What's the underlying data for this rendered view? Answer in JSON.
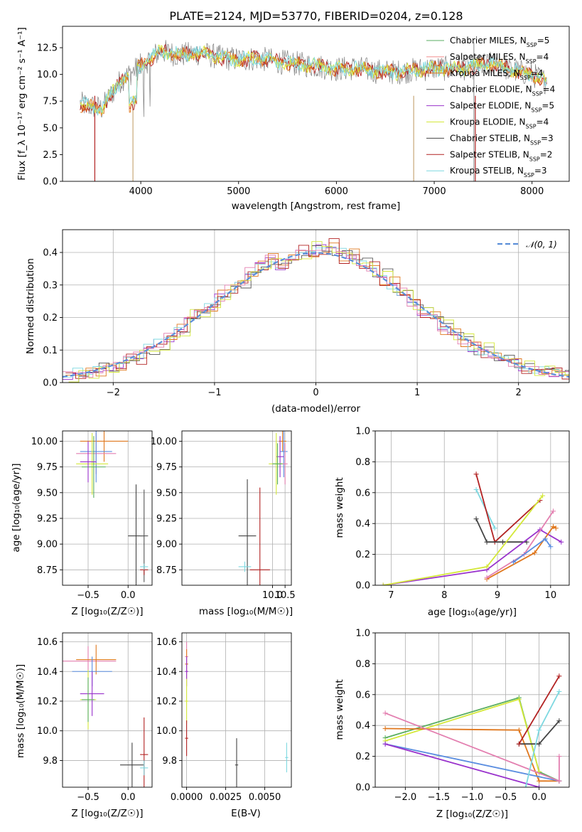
{
  "figure": {
    "title": "PLATE=2124, MJD=53770, FIBERID=0204, z=0.128",
    "colors": {
      "chabrier_miles": "#5aae61",
      "salpeter_miles": "#f08c8c",
      "kroupa_miles": "#e6c200",
      "chabrier_elodie": "#555555",
      "salpeter_elodie": "#9932cc",
      "kroupa_elodie": "#d4e83a",
      "chabrier_stelib": "#444444",
      "salpeter_stelib": "#b22222",
      "kroupa_stelib": "#7dd8e0",
      "normal_curve": "#5b8fd9",
      "orange": "#e0781e",
      "blue": "#5a8de0",
      "pink": "#e37fb0"
    }
  },
  "spectrum": {
    "ylabel": "Flux [f_λ 10⁻¹⁷ erg cm⁻² s⁻¹ A⁻¹]",
    "xlabel": "wavelength [Angstrom, rest frame]",
    "xticks": [
      "4000",
      "5000",
      "6000",
      "7000",
      "8000"
    ],
    "yticks": [
      "0.0",
      "2.5",
      "5.0",
      "7.5",
      "10.0",
      "12.5"
    ],
    "legend": [
      {
        "label": "Chabrier MILES, N",
        "sub": "SSP",
        "tail": "=5",
        "color": "#5aae61"
      },
      {
        "label": "Salpeter MILES, N",
        "sub": "SSP",
        "tail": "=4",
        "color": "#f08c8c"
      },
      {
        "label": "Kroupa MILES, N",
        "sub": "SSP",
        "tail": "=4",
        "color": "#e0781e"
      },
      {
        "label": "Chabrier ELODIE, N",
        "sub": "SSP",
        "tail": "=4",
        "color": "#555555"
      },
      {
        "label": "Salpeter ELODIE, N",
        "sub": "SSP",
        "tail": "=5",
        "color": "#9932cc"
      },
      {
        "label": "Kroupa ELODIE, N",
        "sub": "SSP",
        "tail": "=4",
        "color": "#d4e83a"
      },
      {
        "label": "Chabrier STELIB, N",
        "sub": "SSP",
        "tail": "=3",
        "color": "#444444"
      },
      {
        "label": "Salpeter STELIB, N",
        "sub": "SSP",
        "tail": "=2",
        "color": "#b22222"
      },
      {
        "label": "Kroupa STELIB, N",
        "sub": "SSP",
        "tail": "=3",
        "color": "#7dd8e0"
      }
    ]
  },
  "histogram": {
    "ylabel": "Normed distribution",
    "xlabel": "(data-model)/error",
    "xticks": [
      "−2",
      "−1",
      "0",
      "1",
      "2"
    ],
    "yticks": [
      "0.0",
      "0.1",
      "0.2",
      "0.3",
      "0.4"
    ],
    "legend_label": "𝒩(0, 1)"
  },
  "small_panels": {
    "age_label": "age  [log₁₀(age/yr)]",
    "mass_label": "mass [log₁₀(M/M☉)]",
    "z_label": "Z [log₁₀(Z/Z☉)]",
    "ebv_label": "E(B-V)",
    "weight_label": "mass weight",
    "age_ticks": [
      "8.75",
      "9.00",
      "9.25",
      "9.50",
      "9.75",
      "10.00"
    ],
    "mass_ticks": [
      "9.8",
      "10.0",
      "10.2",
      "10.4",
      "10.6"
    ],
    "z_ticks": [
      "−0.5",
      "0.0"
    ],
    "z_ticks_wide": [
      "−2.0",
      "−1.5",
      "−1.0",
      "−0.5",
      "0.0"
    ],
    "mass_x_ticks": [
      "10.0",
      "10.5"
    ],
    "ebv_ticks": [
      "0.0000",
      "0.0025",
      "0.0050"
    ],
    "age_x_ticks": [
      "7",
      "8",
      "9",
      "10"
    ],
    "weight_ticks": [
      "0.0",
      "0.2",
      "0.4",
      "0.6",
      "0.8",
      "1.0"
    ]
  },
  "chart_data": [
    {
      "type": "line",
      "title": "PLATE=2124, MJD=53770, FIBERID=0204, z=0.128",
      "xlabel": "wavelength [Angstrom, rest frame]",
      "ylabel": "Flux [f_λ 10⁻¹⁷ erg cm⁻² s⁻¹ A⁻¹]",
      "xlim": [
        3200,
        8380
      ],
      "ylim": [
        0,
        14.5
      ],
      "x": [
        3400,
        3600,
        3800,
        4000,
        4200,
        4400,
        4600,
        4800,
        5000,
        5200,
        5400,
        5600,
        5800,
        6000,
        6200,
        6400,
        6600,
        6800,
        7000,
        7200,
        7400,
        7600,
        7800,
        8000,
        8150
      ],
      "y": [
        7.2,
        6.8,
        9.5,
        10.8,
        12.2,
        11.8,
        12.0,
        11.6,
        11.4,
        11.5,
        11.2,
        11.0,
        10.8,
        10.5,
        10.6,
        10.3,
        10.2,
        10.4,
        10.6,
        10.5,
        10.7,
        11.0,
        10.4,
        10.0,
        9.3
      ]
    },
    {
      "type": "bar",
      "xlabel": "(data-model)/error",
      "ylabel": "Normed distribution",
      "xlim": [
        -2.5,
        2.5
      ],
      "ylim": [
        0,
        0.47
      ],
      "bin_edges": [
        -2.5,
        -2.4,
        -2.3,
        -2.2,
        -2.1,
        -2.0,
        -1.9,
        -1.8,
        -1.7,
        -1.6,
        -1.5,
        -1.4,
        -1.3,
        -1.2,
        -1.1,
        -1.0,
        -0.9,
        -0.8,
        -0.7,
        -0.6,
        -0.5,
        -0.4,
        -0.3,
        -0.2,
        -0.1,
        0.0,
        0.1,
        0.2,
        0.3,
        0.4,
        0.5,
        0.6,
        0.7,
        0.8,
        0.9,
        1.0,
        1.1,
        1.2,
        1.3,
        1.4,
        1.5,
        1.6,
        1.7,
        1.8,
        1.9,
        2.0,
        2.1,
        2.2,
        2.3,
        2.4,
        2.5
      ],
      "series": [
        {
          "values": [
            0.02,
            0.03,
            0.03,
            0.04,
            0.05,
            0.06,
            0.07,
            0.08,
            0.11,
            0.12,
            0.14,
            0.16,
            0.2,
            0.21,
            0.23,
            0.26,
            0.29,
            0.31,
            0.34,
            0.37,
            0.38,
            0.36,
            0.39,
            0.4,
            0.41,
            0.42,
            0.41,
            0.4,
            0.38,
            0.37,
            0.35,
            0.33,
            0.3,
            0.28,
            0.24,
            0.22,
            0.2,
            0.17,
            0.15,
            0.13,
            0.11,
            0.1,
            0.08,
            0.07,
            0.06,
            0.05,
            0.04,
            0.035,
            0.03,
            0.02
          ]
        },
        {
          "values": [
            0.03,
            0.02,
            0.03,
            0.03,
            0.06,
            0.05,
            0.08,
            0.07,
            0.1,
            0.13,
            0.13,
            0.17,
            0.19,
            0.22,
            0.22,
            0.28,
            0.27,
            0.32,
            0.33,
            0.36,
            0.39,
            0.35,
            0.38,
            0.41,
            0.39,
            0.4,
            0.43,
            0.38,
            0.4,
            0.36,
            0.36,
            0.31,
            0.31,
            0.27,
            0.25,
            0.21,
            0.21,
            0.16,
            0.16,
            0.12,
            0.12,
            0.09,
            0.09,
            0.06,
            0.07,
            0.04,
            0.05,
            0.03,
            0.03,
            0.02
          ]
        },
        {
          "values": [
            0.01,
            0.03,
            0.02,
            0.05,
            0.04,
            0.07,
            0.06,
            0.09,
            0.1,
            0.11,
            0.15,
            0.15,
            0.21,
            0.2,
            0.24,
            0.25,
            0.3,
            0.3,
            0.35,
            0.35,
            0.37,
            0.37,
            0.37,
            0.39,
            0.42,
            0.41,
            0.4,
            0.41,
            0.37,
            0.38,
            0.34,
            0.34,
            0.29,
            0.29,
            0.23,
            0.23,
            0.19,
            0.18,
            0.14,
            0.14,
            0.1,
            0.11,
            0.07,
            0.08,
            0.05,
            0.06,
            0.03,
            0.04,
            0.02,
            0.03
          ]
        }
      ]
    },
    {
      "type": "scatter",
      "xlabel": "age  [log₁₀(age/yr)]",
      "ylabel": "mass weight",
      "xlim": [
        6.7,
        10.35
      ],
      "ylim": [
        0,
        1.0
      ],
      "series": [
        {
          "name": "",
          "color": "#7dd8e0",
          "x": [
            8.6,
            8.95
          ],
          "y": [
            0.62,
            0.37
          ]
        },
        {
          "name": "",
          "color": "#b22222",
          "x": [
            8.6,
            8.95,
            9.8
          ],
          "y": [
            0.72,
            0.28,
            0.55
          ]
        },
        {
          "name": "",
          "color": "#444444",
          "x": [
            8.6,
            8.8,
            9.1,
            9.55
          ],
          "y": [
            0.43,
            0.28,
            0.28,
            0.28
          ]
        },
        {
          "name": "",
          "color": "#9932cc",
          "x": [
            6.85,
            8.8,
            9.8,
            10.2
          ],
          "y": [
            0.0,
            0.1,
            0.36,
            0.28
          ]
        },
        {
          "name": "",
          "color": "#d4e83a",
          "x": [
            6.85,
            8.8,
            9.85
          ],
          "y": [
            0.0,
            0.12,
            0.58
          ]
        },
        {
          "name": "",
          "color": "#e0781e",
          "x": [
            8.8,
            9.7,
            10.05,
            10.1
          ],
          "y": [
            0.04,
            0.21,
            0.38,
            0.37
          ]
        },
        {
          "name": "",
          "color": "#e37fb0",
          "x": [
            8.8,
            9.5,
            10.05
          ],
          "y": [
            0.05,
            0.2,
            0.48
          ]
        },
        {
          "name": "",
          "color": "#5a8de0",
          "x": [
            9.3,
            9.9,
            10.0
          ],
          "y": [
            0.15,
            0.3,
            0.25
          ]
        }
      ]
    },
    {
      "type": "scatter",
      "xlabel": "Z [log₁₀(Z/Z☉)]",
      "ylabel": "mass weight",
      "xlim": [
        -2.45,
        0.45
      ],
      "ylim": [
        0,
        1.0
      ],
      "series": [
        {
          "name": "",
          "color": "#5aae61",
          "x": [
            -2.3,
            -0.3,
            0.0,
            0.3
          ],
          "y": [
            0.32,
            0.58,
            0.1,
            0.04
          ]
        },
        {
          "name": "",
          "color": "#d4e83a",
          "x": [
            -2.3,
            -0.3,
            0.0
          ],
          "y": [
            0.3,
            0.57,
            0.1
          ]
        },
        {
          "name": "",
          "color": "#e0781e",
          "x": [
            -2.3,
            -0.3,
            0.0,
            0.3
          ],
          "y": [
            0.38,
            0.37,
            0.04,
            0.04
          ]
        },
        {
          "name": "",
          "color": "#5a8de0",
          "x": [
            -2.3,
            0.3
          ],
          "y": [
            0.28,
            0.04
          ]
        },
        {
          "name": "",
          "color": "#9932cc",
          "x": [
            -2.3,
            0.0
          ],
          "y": [
            0.28,
            0.0
          ]
        },
        {
          "name": "",
          "color": "#e37fb0",
          "x": [
            -2.3,
            0.3,
            0.3
          ],
          "y": [
            0.48,
            0.04,
            0.2
          ]
        },
        {
          "name": "",
          "color": "#444444",
          "x": [
            -0.3,
            0.0,
            0.3
          ],
          "y": [
            0.28,
            0.28,
            0.43
          ]
        },
        {
          "name": "",
          "color": "#b22222",
          "x": [
            -0.3,
            0.3
          ],
          "y": [
            0.28,
            0.72
          ]
        },
        {
          "name": "",
          "color": "#7dd8e0",
          "x": [
            -0.2,
            0.0,
            0.3
          ],
          "y": [
            0.0,
            0.37,
            0.62
          ]
        }
      ]
    }
  ]
}
